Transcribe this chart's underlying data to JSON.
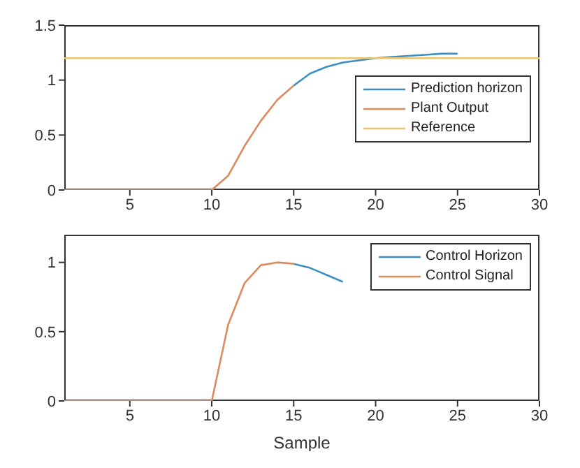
{
  "chart_data": [
    {
      "type": "line",
      "xlim": [
        1,
        30
      ],
      "xticks": [
        5,
        10,
        15,
        20,
        25,
        30
      ],
      "ylim": [
        0,
        1.5
      ],
      "yticks": [
        0,
        0.5,
        1,
        1.5
      ],
      "legend": "right",
      "marker": "none",
      "series": [
        {
          "name": "Prediction horizon",
          "color": "#3d8fc2",
          "x": [
            15,
            16,
            17,
            18,
            19,
            20,
            21,
            22,
            23,
            24,
            25
          ],
          "values": [
            0.95,
            1.06,
            1.12,
            1.16,
            1.18,
            1.2,
            1.21,
            1.22,
            1.23,
            1.24,
            1.24
          ]
        },
        {
          "name": "Plant Output",
          "color": "#dc8a5e",
          "x": [
            1,
            2,
            3,
            4,
            5,
            6,
            7,
            8,
            9,
            10,
            11,
            12,
            13,
            14,
            15
          ],
          "values": [
            0,
            0,
            0,
            0,
            0,
            0,
            0,
            0,
            0,
            0,
            0.13,
            0.4,
            0.63,
            0.82,
            0.95
          ]
        },
        {
          "name": "Reference",
          "color": "#ebc66e",
          "x": [
            1,
            30
          ],
          "values": [
            1.2,
            1.2
          ]
        }
      ]
    },
    {
      "type": "line",
      "xlabel": "Sample",
      "xlim": [
        1,
        30
      ],
      "xticks": [
        5,
        10,
        15,
        20,
        25,
        30
      ],
      "ylim": [
        0,
        1.2
      ],
      "yticks": [
        0,
        0.5,
        1
      ],
      "legend": "top right",
      "marker": "none",
      "series": [
        {
          "name": "Control Horizon",
          "color": "#3d8fc2",
          "x": [
            15,
            16,
            17,
            18
          ],
          "values": [
            0.99,
            0.96,
            0.91,
            0.86
          ]
        },
        {
          "name": "Control Signal",
          "color": "#dc8a5e",
          "x": [
            1,
            2,
            3,
            4,
            5,
            6,
            7,
            8,
            9,
            10,
            11,
            12,
            13,
            14,
            15
          ],
          "values": [
            0,
            0,
            0,
            0,
            0,
            0,
            0,
            0,
            0,
            0,
            0.55,
            0.85,
            0.98,
            1.0,
            0.99
          ]
        }
      ]
    }
  ]
}
